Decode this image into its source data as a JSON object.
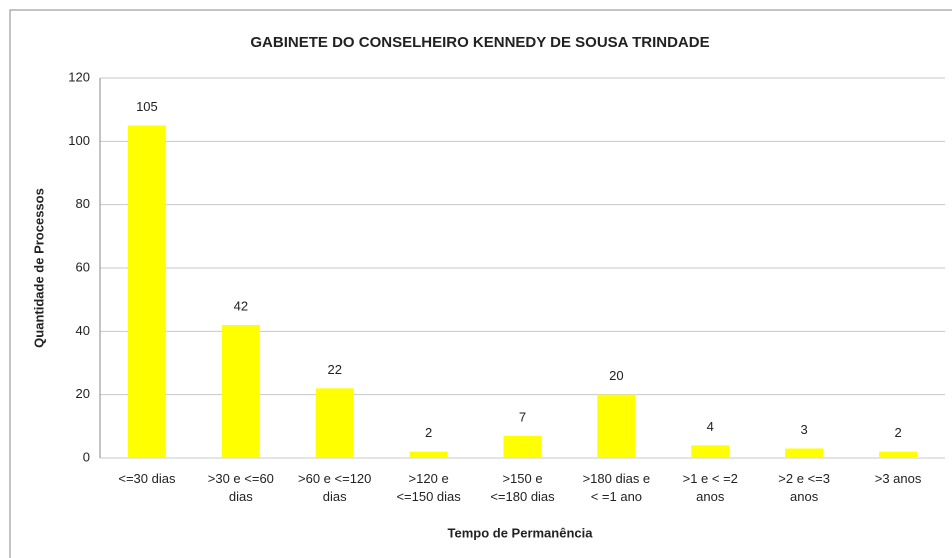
{
  "chart_data": {
    "type": "bar",
    "title": "GABINETE DO CONSELHEIRO KENNEDY DE SOUSA TRINDADE",
    "x_label": "Tempo de Permanência",
    "y_label": "Quantidade de Processos",
    "categories": [
      "<=30 dias",
      ">30 e <=60\ndias",
      ">60 e <=120\ndias",
      ">120 e\n<=150 dias",
      ">150 e\n<=180 dias",
      ">180 dias e\n< =1 ano",
      ">1 e < =2\nanos",
      ">2 e <=3\nanos",
      ">3 anos"
    ],
    "values": [
      105,
      42,
      22,
      2,
      7,
      20,
      4,
      3,
      2
    ],
    "color": "#ffff00",
    "ylim": [
      0,
      120
    ],
    "yticks": [
      0,
      20,
      40,
      60,
      80,
      100,
      120
    ],
    "grid": true
  }
}
